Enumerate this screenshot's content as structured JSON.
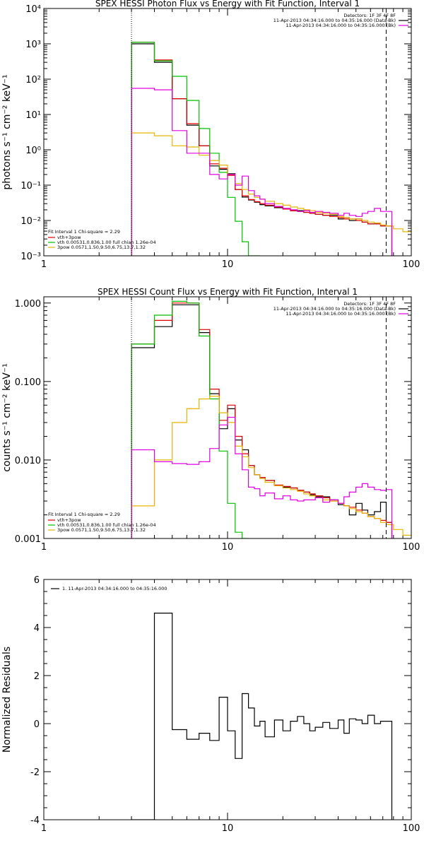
{
  "chart_data": [
    {
      "type": "line",
      "title": "SPEX HESSI Photon Flux vs Energy with Fit Function, Interval 1",
      "ylabel": "photons s⁻¹ cm⁻² keV⁻¹",
      "xlabel": "",
      "x_scale": "log",
      "y_scale": "log",
      "xlim": [
        1,
        100
      ],
      "ylim": [
        0.001,
        10000
      ],
      "x_tick_labels": [
        "1",
        "10",
        "100"
      ],
      "y_tick_labels": [
        "10⁻³",
        "10⁻²",
        "10⁻¹",
        "10⁰",
        "10¹",
        "10²",
        "10³",
        "10⁴"
      ],
      "vlines": [
        {
          "x": 3,
          "style": "dotted"
        },
        {
          "x": 73,
          "style": "dashed"
        }
      ],
      "legend_top": [
        "Detectors: 1F 3F 4F 8F",
        "11-Apr-2013 04:34:16.000 to 04:35:16.000 (Data-Bk)",
        "11-Apr-2013 04:34:16.000 to 04:35:16.000 (Bk)"
      ],
      "legend_bottom_header": "Fit Interval 1    Chi-square = 2.29",
      "legend_bottom": [
        "vth+3pow",
        "vth 0.00531,0.836,1.00  full chian 1.26e-04",
        "3pow 0.0571,1.50,9.50,6.75,13.7,1.32"
      ],
      "series": [
        {
          "name": "11-Apr-2013 04:34:16.000 to 04:35:16.000 (Data-Bk)",
          "color": "#000000",
          "x": [
            3,
            4,
            5,
            6,
            7,
            8,
            9,
            10,
            11,
            12,
            13,
            14,
            15,
            16,
            18,
            20,
            22,
            24,
            26,
            28,
            30,
            33,
            36,
            40,
            43,
            46,
            50,
            54,
            58,
            63,
            68,
            73
          ],
          "y": [
            1000,
            300,
            28,
            5,
            1.3,
            0.35,
            0.28,
            0.21,
            0.075,
            0.046,
            0.038,
            0.033,
            0.028,
            0.026,
            0.023,
            0.021,
            0.019,
            0.019,
            0.017,
            0.016,
            0.015,
            0.014,
            0.014,
            0.011,
            0.012,
            0.01,
            0.011,
            0.009,
            0.008,
            0.008,
            0.007,
            0.007
          ]
        },
        {
          "name": "vth+3pow",
          "color": "#e00000",
          "x": [
            3,
            4,
            5,
            6,
            7,
            8,
            9,
            10,
            11,
            12,
            13,
            14,
            15,
            16,
            18,
            20,
            22,
            24,
            26,
            28,
            30,
            33,
            36,
            40,
            43,
            46,
            50,
            54,
            58,
            63,
            68,
            73
          ],
          "y": [
            1100,
            350,
            28,
            5.5,
            1.3,
            0.4,
            0.3,
            0.19,
            0.075,
            0.05,
            0.039,
            0.034,
            0.03,
            0.027,
            0.024,
            0.021,
            0.019,
            0.018,
            0.017,
            0.016,
            0.015,
            0.014,
            0.013,
            0.012,
            0.011,
            0.011,
            0.01,
            0.009,
            0.008,
            0.008,
            0.007,
            0.007
          ]
        },
        {
          "name": "vth 0.00531,0.836,1.00  full chian 1.26e-04",
          "color": "#00c000",
          "x": [
            3,
            4,
            5,
            6,
            7,
            8,
            9,
            10,
            11,
            12,
            13,
            14
          ],
          "y": [
            1100,
            330,
            120,
            25,
            4,
            0.8,
            0.23,
            0.045,
            0.0095,
            0.0025,
            0.0009,
            0.0009
          ]
        },
        {
          "name": "3pow 0.0571,1.50,9.50,6.75,13.7,1.32",
          "color": "#e8b400",
          "x": [
            3,
            4,
            5,
            6,
            7,
            8,
            9,
            10,
            11,
            12,
            13,
            14,
            15,
            16,
            18,
            20,
            22,
            24,
            26,
            28,
            30,
            33,
            36,
            40,
            43,
            46,
            50,
            54,
            58,
            63,
            68,
            73,
            80,
            90
          ],
          "y": [
            3,
            2.5,
            1.3,
            1.2,
            0.7,
            0.5,
            0.37,
            0.2,
            0.11,
            0.075,
            0.056,
            0.045,
            0.04,
            0.035,
            0.03,
            0.027,
            0.024,
            0.022,
            0.02,
            0.019,
            0.017,
            0.016,
            0.015,
            0.013,
            0.012,
            0.011,
            0.011,
            0.01,
            0.009,
            0.0085,
            0.0075,
            0.007,
            0.0058,
            0.0048
          ]
        },
        {
          "name": "11-Apr-2013 04:34:16.000 to 04:35:16.000 (Bk)",
          "color": "#e000e0",
          "x": [
            3,
            4,
            5,
            6,
            7,
            8,
            9,
            10,
            11,
            12,
            13,
            14,
            15,
            16,
            18,
            20,
            22,
            24,
            26,
            28,
            30,
            33,
            36,
            40,
            43,
            46,
            50,
            54,
            58,
            63,
            68,
            73
          ],
          "y": [
            55,
            50,
            3.5,
            0.8,
            0.8,
            0.2,
            0.15,
            0.2,
            0.1,
            0.18,
            0.07,
            0.05,
            0.04,
            0.03,
            0.025,
            0.022,
            0.02,
            0.018,
            0.019,
            0.017,
            0.018,
            0.017,
            0.016,
            0.014,
            0.016,
            0.014,
            0.013,
            0.016,
            0.018,
            0.022,
            0.018,
            0.018
          ]
        }
      ]
    },
    {
      "type": "line",
      "title": "SPEX HESSI Count Flux vs Energy with Fit Function, Interval 1",
      "ylabel": "counts s⁻¹ cm⁻² keV⁻¹",
      "xlabel": "",
      "x_scale": "log",
      "y_scale": "log",
      "xlim": [
        1,
        100
      ],
      "ylim": [
        0.001,
        1.2
      ],
      "x_tick_labels": [
        "1",
        "10",
        "100"
      ],
      "y_tick_labels": [
        "0.001",
        "0.010",
        "0.100",
        "1.000"
      ],
      "vlines": [
        {
          "x": 3,
          "style": "dotted"
        },
        {
          "x": 73,
          "style": "dashed"
        }
      ],
      "legend_top": [
        "Detectors: 1F 3F 4F 8F",
        "11-Apr-2013 04:34:16.000 to 04:35:16.000 (Data-Bk)",
        "11-Apr-2013 04:34:16.000 to 04:35:16.000 (Bk)"
      ],
      "legend_bottom_header": "Fit Interval 1    Chi-square = 2.29",
      "legend_bottom": [
        "vth+3pow",
        "vth 0.00531,0.836,1.00  full chian 1.26e-04",
        "3pow 0.0571,1.50,9.50,6.75,13.7,1.32"
      ],
      "series": [
        {
          "name": "11-Apr-2013 04:34:16.000 to 04:35:16.000 (Data-Bk)",
          "color": "#000000",
          "x": [
            3,
            4,
            5,
            6,
            7,
            8,
            9,
            10,
            11,
            12,
            13,
            14,
            15,
            16,
            18,
            20,
            22,
            24,
            26,
            28,
            30,
            33,
            36,
            40,
            43,
            46,
            50,
            54,
            58,
            63,
            68,
            73
          ],
          "y": [
            0.27,
            0.5,
            0.95,
            0.95,
            0.42,
            0.07,
            0.025,
            0.045,
            0.018,
            0.0135,
            0.0085,
            0.0065,
            0.006,
            0.0055,
            0.0047,
            0.0045,
            0.0044,
            0.0041,
            0.0039,
            0.0036,
            0.0034,
            0.0034,
            0.0031,
            0.0027,
            0.0026,
            0.002,
            0.0028,
            0.0023,
            0.002,
            0.0022,
            0.0029,
            0.0016
          ]
        },
        {
          "name": "vth+3pow",
          "color": "#e00000",
          "x": [
            3,
            4,
            5,
            6,
            7,
            8,
            9,
            10,
            11,
            12,
            13,
            14,
            15,
            16,
            18,
            20,
            22,
            24,
            26,
            28,
            30,
            33,
            36,
            40,
            43,
            46,
            50,
            54,
            58,
            63,
            68,
            73
          ],
          "y": [
            0.3,
            0.6,
            1.0,
            1.0,
            0.46,
            0.08,
            0.032,
            0.05,
            0.02,
            0.012,
            0.0085,
            0.0065,
            0.006,
            0.0055,
            0.0048,
            0.0046,
            0.0044,
            0.0041,
            0.0039,
            0.0037,
            0.0035,
            0.0033,
            0.003,
            0.0028,
            0.0026,
            0.0025,
            0.0023,
            0.0021,
            0.0019,
            0.0018,
            0.0017,
            0.0016
          ]
        },
        {
          "name": "vth 0.00531,0.836,1.00  full chian 1.26e-04",
          "color": "#00c000",
          "x": [
            3,
            4,
            5,
            6,
            7,
            8,
            9,
            10,
            11,
            12
          ],
          "y": [
            0.3,
            0.7,
            1.05,
            1.0,
            0.38,
            0.06,
            0.013,
            0.0028,
            0.0012,
            0.0009
          ]
        },
        {
          "name": "3pow 0.0571,1.50,9.50,6.75,13.7,1.32",
          "color": "#e8b400",
          "x": [
            3,
            4,
            5,
            6,
            7,
            8,
            9,
            10,
            11,
            12,
            13,
            14,
            15,
            16,
            18,
            20,
            22,
            24,
            26,
            28,
            30,
            33,
            36,
            40,
            43,
            46,
            50,
            54,
            58,
            63,
            68,
            73,
            80,
            90
          ],
          "y": [
            0.0026,
            0.01,
            0.03,
            0.045,
            0.06,
            0.065,
            0.04,
            0.03,
            0.015,
            0.011,
            0.008,
            0.0065,
            0.0058,
            0.0052,
            0.0047,
            0.0044,
            0.0042,
            0.004,
            0.0037,
            0.0035,
            0.0033,
            0.0031,
            0.003,
            0.0028,
            0.0026,
            0.0024,
            0.0022,
            0.0021,
            0.0019,
            0.0018,
            0.0016,
            0.0015,
            0.0013,
            0.0011
          ]
        },
        {
          "name": "11-Apr-2013 04:34:16.000 to 04:35:16.000 (Bk)",
          "color": "#e000e0",
          "x": [
            3,
            4,
            5,
            6,
            7,
            8,
            9,
            10,
            11,
            12,
            13,
            14,
            15,
            16,
            18,
            20,
            22,
            24,
            26,
            28,
            30,
            33,
            36,
            40,
            43,
            46,
            50,
            54,
            58,
            63,
            68,
            73
          ],
          "y": [
            0.0135,
            0.0095,
            0.009,
            0.0088,
            0.0095,
            0.014,
            0.028,
            0.035,
            0.012,
            0.0075,
            0.0045,
            0.0043,
            0.0035,
            0.0038,
            0.0032,
            0.0035,
            0.0031,
            0.003,
            0.0031,
            0.0031,
            0.0033,
            0.0029,
            0.0031,
            0.0028,
            0.0034,
            0.0039,
            0.0045,
            0.005,
            0.0045,
            0.0042,
            0.0041,
            0.0042
          ]
        }
      ]
    },
    {
      "type": "line",
      "title": "",
      "ylabel": "Normalized Residuals",
      "xlabel": "",
      "x_scale": "log",
      "y_scale": "linear",
      "xlim": [
        1,
        100
      ],
      "ylim": [
        -4,
        6
      ],
      "x_tick_labels": [
        "1",
        "10",
        "100"
      ],
      "y_tick_labels": [
        "-4",
        "-2",
        "0",
        "2",
        "4",
        "6"
      ],
      "legend_top": [
        "1. 11-Apr-2013 04:34:16.000 to 04:35:16.000"
      ],
      "series": [
        {
          "name": "1. 11-Apr-2013 04:34:16.000 to 04:35:16.000",
          "color": "#000000",
          "x": [
            3,
            4,
            5,
            6,
            7,
            8,
            9,
            10,
            11,
            12,
            13,
            14,
            15,
            16,
            18,
            20,
            22,
            24,
            26,
            28,
            30,
            33,
            36,
            40,
            43,
            46,
            50,
            54,
            58,
            63,
            68,
            73
          ],
          "y": [
            -4.0,
            4.6,
            -0.25,
            -0.65,
            -0.4,
            -0.7,
            1.1,
            -0.3,
            -1.45,
            1.25,
            0.65,
            -0.1,
            0.1,
            -0.55,
            0.15,
            -0.3,
            0.1,
            0.3,
            0.0,
            -0.3,
            -0.15,
            0.05,
            -0.2,
            0.15,
            -0.4,
            0.2,
            0.15,
            0.0,
            0.35,
            0.0,
            0.1,
            0.1
          ]
        }
      ]
    }
  ]
}
